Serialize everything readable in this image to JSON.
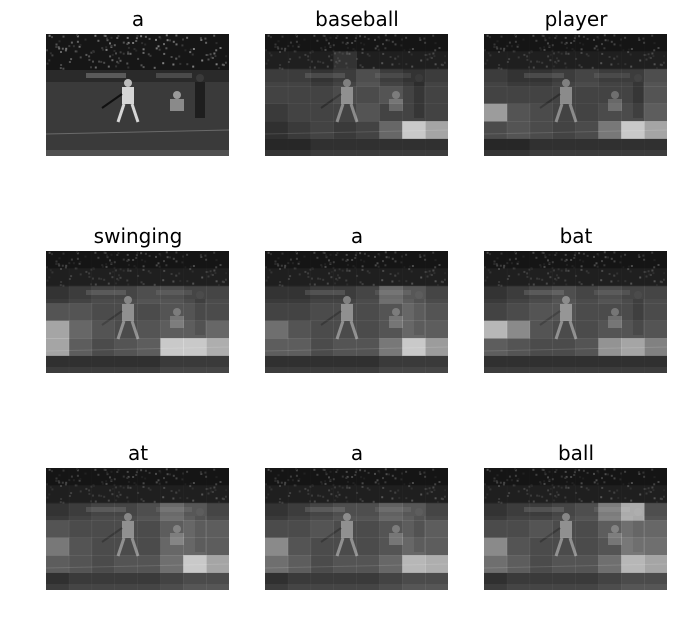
{
  "figure": {
    "panels": [
      {
        "word": "a",
        "attention": null
      },
      {
        "word": "baseball",
        "attention": [
          [
            0.05,
            0.05,
            0.05,
            0.05,
            0.05,
            0.05,
            0.05,
            0.05
          ],
          [
            0.1,
            0.1,
            0.1,
            0.2,
            0.1,
            0.1,
            0.1,
            0.1
          ],
          [
            0.2,
            0.2,
            0.15,
            0.2,
            0.3,
            0.2,
            0.15,
            0.2
          ],
          [
            0.2,
            0.2,
            0.2,
            0.25,
            0.25,
            0.3,
            0.2,
            0.2
          ],
          [
            0.15,
            0.2,
            0.2,
            0.2,
            0.3,
            0.2,
            0.2,
            0.2
          ],
          [
            0.1,
            0.15,
            0.2,
            0.15,
            0.2,
            0.4,
            0.95,
            0.75
          ],
          [
            0.05,
            0.05,
            0.1,
            0.1,
            0.1,
            0.1,
            0.1,
            0.1
          ]
        ]
      },
      {
        "word": "player",
        "attention": [
          [
            0.05,
            0.05,
            0.05,
            0.05,
            0.05,
            0.05,
            0.05,
            0.05
          ],
          [
            0.1,
            0.1,
            0.1,
            0.1,
            0.1,
            0.1,
            0.1,
            0.1
          ],
          [
            0.2,
            0.15,
            0.15,
            0.2,
            0.25,
            0.2,
            0.2,
            0.3
          ],
          [
            0.2,
            0.2,
            0.2,
            0.2,
            0.2,
            0.2,
            0.2,
            0.3
          ],
          [
            0.7,
            0.3,
            0.25,
            0.2,
            0.2,
            0.25,
            0.25,
            0.35
          ],
          [
            0.25,
            0.3,
            0.25,
            0.2,
            0.25,
            0.5,
            0.95,
            0.75
          ],
          [
            0.05,
            0.05,
            0.1,
            0.1,
            0.1,
            0.1,
            0.1,
            0.1
          ]
        ]
      },
      {
        "word": "swinging",
        "attention": [
          [
            0.05,
            0.05,
            0.05,
            0.05,
            0.05,
            0.05,
            0.05,
            0.05
          ],
          [
            0.1,
            0.1,
            0.1,
            0.1,
            0.1,
            0.1,
            0.1,
            0.1
          ],
          [
            0.15,
            0.2,
            0.25,
            0.25,
            0.3,
            0.3,
            0.25,
            0.25
          ],
          [
            0.3,
            0.3,
            0.25,
            0.25,
            0.25,
            0.3,
            0.3,
            0.25
          ],
          [
            0.75,
            0.4,
            0.3,
            0.25,
            0.3,
            0.35,
            0.35,
            0.4
          ],
          [
            0.75,
            0.35,
            0.25,
            0.3,
            0.35,
            0.95,
            0.95,
            0.8
          ],
          [
            0.1,
            0.1,
            0.1,
            0.1,
            0.1,
            0.15,
            0.15,
            0.15
          ]
        ]
      },
      {
        "word": "a",
        "attention": [
          [
            0.05,
            0.05,
            0.05,
            0.05,
            0.05,
            0.05,
            0.05,
            0.05
          ],
          [
            0.1,
            0.1,
            0.1,
            0.1,
            0.1,
            0.1,
            0.1,
            0.1
          ],
          [
            0.15,
            0.15,
            0.2,
            0.2,
            0.25,
            0.45,
            0.35,
            0.25
          ],
          [
            0.2,
            0.2,
            0.25,
            0.25,
            0.25,
            0.3,
            0.4,
            0.3
          ],
          [
            0.45,
            0.3,
            0.25,
            0.25,
            0.25,
            0.3,
            0.4,
            0.35
          ],
          [
            0.35,
            0.35,
            0.25,
            0.3,
            0.3,
            0.5,
            0.95,
            0.7
          ],
          [
            0.1,
            0.1,
            0.1,
            0.1,
            0.1,
            0.15,
            0.15,
            0.15
          ]
        ]
      },
      {
        "word": "bat",
        "attention": [
          [
            0.05,
            0.05,
            0.05,
            0.05,
            0.05,
            0.05,
            0.05,
            0.05
          ],
          [
            0.1,
            0.1,
            0.1,
            0.1,
            0.1,
            0.1,
            0.1,
            0.1
          ],
          [
            0.15,
            0.2,
            0.25,
            0.3,
            0.25,
            0.3,
            0.25,
            0.25
          ],
          [
            0.2,
            0.25,
            0.3,
            0.3,
            0.25,
            0.25,
            0.25,
            0.25
          ],
          [
            0.85,
            0.6,
            0.3,
            0.25,
            0.25,
            0.3,
            0.3,
            0.3
          ],
          [
            0.35,
            0.3,
            0.25,
            0.25,
            0.3,
            0.65,
            0.75,
            0.55
          ],
          [
            0.1,
            0.1,
            0.1,
            0.1,
            0.1,
            0.1,
            0.1,
            0.1
          ]
        ]
      },
      {
        "word": "at",
        "attention": [
          [
            0.05,
            0.05,
            0.05,
            0.05,
            0.05,
            0.05,
            0.05,
            0.05
          ],
          [
            0.1,
            0.1,
            0.1,
            0.1,
            0.1,
            0.1,
            0.1,
            0.1
          ],
          [
            0.15,
            0.2,
            0.25,
            0.25,
            0.3,
            0.45,
            0.35,
            0.25
          ],
          [
            0.3,
            0.25,
            0.25,
            0.25,
            0.25,
            0.35,
            0.4,
            0.35
          ],
          [
            0.5,
            0.3,
            0.25,
            0.25,
            0.25,
            0.4,
            0.4,
            0.35
          ],
          [
            0.35,
            0.3,
            0.25,
            0.3,
            0.3,
            0.45,
            0.95,
            0.75
          ],
          [
            0.1,
            0.15,
            0.15,
            0.15,
            0.15,
            0.2,
            0.25,
            0.25
          ]
        ]
      },
      {
        "word": "a",
        "attention": [
          [
            0.05,
            0.05,
            0.05,
            0.05,
            0.05,
            0.05,
            0.05,
            0.05
          ],
          [
            0.1,
            0.1,
            0.1,
            0.1,
            0.1,
            0.1,
            0.1,
            0.1
          ],
          [
            0.15,
            0.2,
            0.25,
            0.3,
            0.3,
            0.4,
            0.35,
            0.25
          ],
          [
            0.25,
            0.25,
            0.3,
            0.25,
            0.25,
            0.3,
            0.35,
            0.35
          ],
          [
            0.6,
            0.3,
            0.25,
            0.25,
            0.25,
            0.3,
            0.4,
            0.35
          ],
          [
            0.45,
            0.35,
            0.25,
            0.3,
            0.3,
            0.4,
            0.85,
            0.8
          ],
          [
            0.1,
            0.15,
            0.15,
            0.15,
            0.15,
            0.2,
            0.25,
            0.25
          ]
        ]
      },
      {
        "word": "ball",
        "attention": [
          [
            0.05,
            0.05,
            0.05,
            0.05,
            0.05,
            0.05,
            0.05,
            0.05
          ],
          [
            0.1,
            0.1,
            0.1,
            0.1,
            0.1,
            0.1,
            0.1,
            0.1
          ],
          [
            0.15,
            0.2,
            0.2,
            0.25,
            0.3,
            0.55,
            0.8,
            0.3
          ],
          [
            0.25,
            0.25,
            0.3,
            0.25,
            0.25,
            0.35,
            0.45,
            0.4
          ],
          [
            0.6,
            0.3,
            0.25,
            0.25,
            0.25,
            0.3,
            0.5,
            0.45
          ],
          [
            0.45,
            0.35,
            0.25,
            0.3,
            0.3,
            0.45,
            0.85,
            0.75
          ],
          [
            0.1,
            0.15,
            0.15,
            0.15,
            0.15,
            0.2,
            0.25,
            0.25
          ]
        ]
      }
    ],
    "colors": {
      "background": "#ffffff",
      "title_text": "#000000",
      "photo_dark": "#161616",
      "photo_field": "#3a3a3a",
      "photo_uniform": "#d6d6d6"
    }
  }
}
